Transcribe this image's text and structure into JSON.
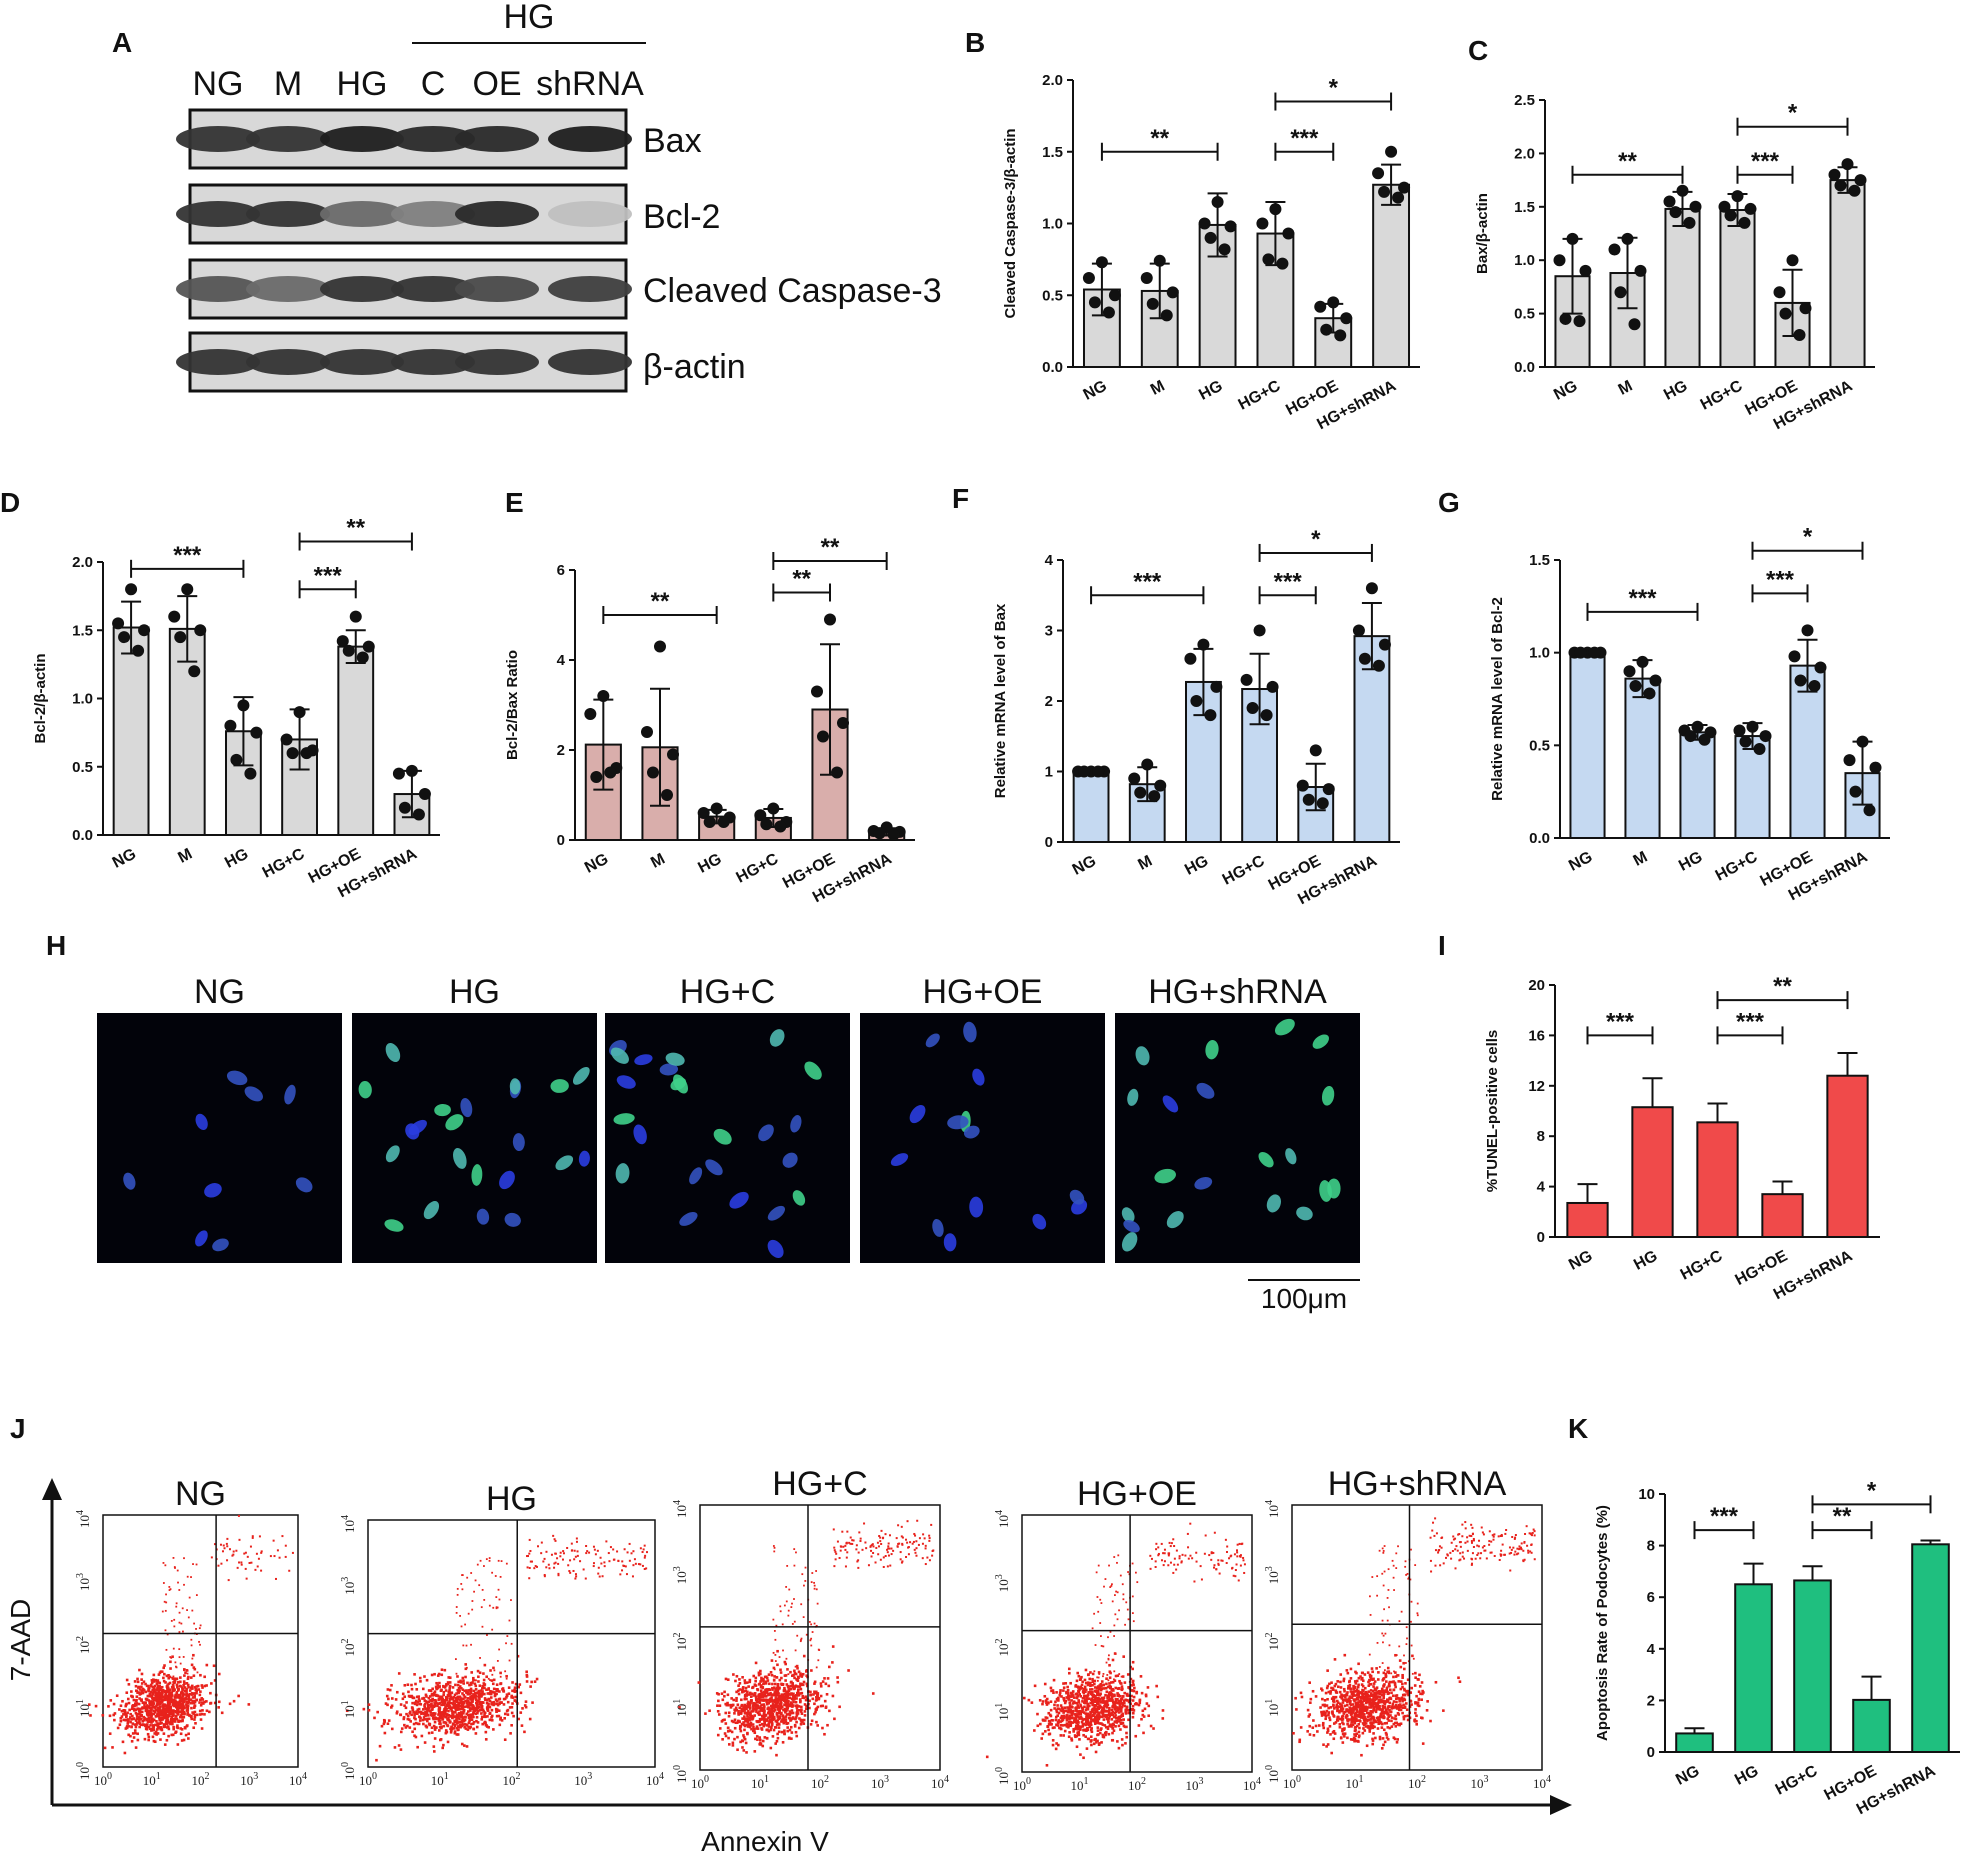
{
  "panel_labels": [
    "A",
    "B",
    "C",
    "D",
    "E",
    "F",
    "G",
    "H",
    "I",
    "J",
    "K"
  ],
  "western_blot": {
    "group_bracket_label": "HG",
    "lanes": [
      "NG",
      "M",
      "HG",
      "C",
      "OE",
      "shRNA"
    ],
    "bands": [
      "Bax",
      "Bcl-2",
      "Cleaved Caspase-3",
      "β-actin"
    ],
    "intensity": [
      [
        0.85,
        0.85,
        0.95,
        0.9,
        0.9,
        0.95
      ],
      [
        0.85,
        0.85,
        0.6,
        0.5,
        0.9,
        0.2
      ],
      [
        0.7,
        0.6,
        0.85,
        0.85,
        0.75,
        0.8
      ],
      [
        0.85,
        0.85,
        0.85,
        0.85,
        0.85,
        0.85
      ]
    ]
  },
  "chart_data": [
    {
      "id": "B",
      "type": "bar",
      "title": "",
      "ylabel": "Cleaved Caspase-3/β-actin",
      "ylim": [
        0,
        2.0
      ],
      "yticks": [
        "0.0",
        "0.5",
        "1.0",
        "1.5",
        "2.0"
      ],
      "categories": [
        "NG",
        "M",
        "HG",
        "HG+C",
        "HG+OE",
        "HG+shRNA"
      ],
      "values": [
        0.54,
        0.53,
        0.99,
        0.93,
        0.34,
        1.27
      ],
      "errors": [
        0.18,
        0.19,
        0.22,
        0.22,
        0.1,
        0.14
      ],
      "points": [
        [
          0.73,
          0.62,
          0.5,
          0.45,
          0.38
        ],
        [
          0.74,
          0.62,
          0.52,
          0.44,
          0.36
        ],
        [
          1.15,
          1.0,
          0.98,
          0.9,
          0.82
        ],
        [
          1.1,
          1.0,
          0.93,
          0.75,
          0.72
        ],
        [
          0.45,
          0.42,
          0.34,
          0.26,
          0.22
        ],
        [
          1.5,
          1.35,
          1.25,
          1.22,
          1.18
        ]
      ],
      "comparisons": [
        {
          "from": 0,
          "to": 2,
          "label": "**",
          "y": 1.5
        },
        {
          "from": 3,
          "to": 4,
          "label": "***",
          "y": 1.5
        },
        {
          "from": 3,
          "to": 5,
          "label": "*",
          "y": 1.85
        }
      ],
      "fill": "#d9d9d9"
    },
    {
      "id": "C",
      "type": "bar",
      "ylabel": "Bax/β-actin",
      "ylim": [
        0,
        2.5
      ],
      "yticks": [
        "0.0",
        "0.5",
        "1.0",
        "1.5",
        "2.0",
        "2.5"
      ],
      "categories": [
        "NG",
        "M",
        "HG",
        "HG+C",
        "HG+OE",
        "HG+shRNA"
      ],
      "values": [
        0.85,
        0.88,
        1.48,
        1.47,
        0.6,
        1.75
      ],
      "errors": [
        0.35,
        0.33,
        0.16,
        0.15,
        0.31,
        0.12
      ],
      "points": [
        [
          1.2,
          1.0,
          0.9,
          0.45,
          0.43
        ],
        [
          1.2,
          1.1,
          0.9,
          0.7,
          0.4
        ],
        [
          1.65,
          1.55,
          1.5,
          1.45,
          1.35
        ],
        [
          1.6,
          1.5,
          1.48,
          1.42,
          1.35
        ],
        [
          1.0,
          0.7,
          0.55,
          0.5,
          0.3
        ],
        [
          1.9,
          1.8,
          1.75,
          1.7,
          1.65
        ]
      ],
      "comparisons": [
        {
          "from": 0,
          "to": 2,
          "label": "**",
          "y": 1.8
        },
        {
          "from": 3,
          "to": 4,
          "label": "***",
          "y": 1.8
        },
        {
          "from": 3,
          "to": 5,
          "label": "*",
          "y": 2.25
        }
      ],
      "fill": "#d9d9d9"
    },
    {
      "id": "D",
      "type": "bar",
      "ylabel": "Bcl-2/β-actin",
      "ylim": [
        0,
        2.0
      ],
      "yticks": [
        "0.0",
        "0.5",
        "1.0",
        "1.5",
        "2.0"
      ],
      "categories": [
        "NG",
        "M",
        "HG",
        "HG+C",
        "HG+OE",
        "HG+shRNA"
      ],
      "values": [
        1.52,
        1.51,
        0.76,
        0.7,
        1.38,
        0.3
      ],
      "errors": [
        0.19,
        0.24,
        0.25,
        0.22,
        0.12,
        0.17
      ],
      "points": [
        [
          1.8,
          1.55,
          1.5,
          1.45,
          1.35
        ],
        [
          1.8,
          1.6,
          1.5,
          1.45,
          1.2
        ],
        [
          0.95,
          0.8,
          0.75,
          0.55,
          0.45
        ],
        [
          0.9,
          0.7,
          0.62,
          0.6,
          0.6
        ],
        [
          1.6,
          1.42,
          1.38,
          1.35,
          1.3
        ],
        [
          0.47,
          0.45,
          0.3,
          0.2,
          0.15
        ]
      ],
      "comparisons": [
        {
          "from": 0,
          "to": 2,
          "label": "***",
          "y": 1.95
        },
        {
          "from": 3,
          "to": 4,
          "label": "***",
          "y": 1.8
        },
        {
          "from": 3,
          "to": 5,
          "label": "**",
          "y": 2.15
        }
      ],
      "fill": "#d9d9d9"
    },
    {
      "id": "E",
      "type": "bar",
      "ylabel": "Bcl-2/Bax Ratio",
      "ylim": [
        0,
        6
      ],
      "yticks": [
        "0",
        "2",
        "4",
        "6"
      ],
      "categories": [
        "NG",
        "M",
        "HG",
        "HG+C",
        "HG+OE",
        "HG+shRNA"
      ],
      "values": [
        2.12,
        2.06,
        0.52,
        0.49,
        2.9,
        0.18
      ],
      "errors": [
        1.0,
        1.3,
        0.15,
        0.2,
        1.45,
        0.08
      ],
      "points": [
        [
          3.2,
          2.8,
          1.6,
          1.4,
          1.5
        ],
        [
          4.3,
          2.4,
          1.9,
          1.5,
          1.0
        ],
        [
          0.7,
          0.6,
          0.5,
          0.4,
          0.4
        ],
        [
          0.7,
          0.55,
          0.4,
          0.35,
          0.3
        ],
        [
          4.9,
          3.3,
          2.6,
          2.3,
          1.5
        ],
        [
          0.28,
          0.2,
          0.18,
          0.15,
          0.12
        ]
      ],
      "comparisons": [
        {
          "from": 0,
          "to": 2,
          "label": "**",
          "y": 5.0
        },
        {
          "from": 3,
          "to": 4,
          "label": "**",
          "y": 5.5
        },
        {
          "from": 3,
          "to": 5,
          "label": "**",
          "y": 6.2
        }
      ],
      "fill": "#d9aeab"
    },
    {
      "id": "F",
      "type": "bar",
      "ylabel": "Relative mRNA level of Bax",
      "ylim": [
        0,
        4
      ],
      "yticks": [
        "0",
        "1",
        "2",
        "3",
        "4"
      ],
      "categories": [
        "NG",
        "M",
        "HG",
        "HG+C",
        "HG+OE",
        "HG+shRNA"
      ],
      "values": [
        1.0,
        0.82,
        2.27,
        2.17,
        0.78,
        2.92
      ],
      "errors": [
        0.0,
        0.24,
        0.47,
        0.5,
        0.33,
        0.47
      ],
      "points": [
        [
          1,
          1,
          1,
          1,
          1
        ],
        [
          1.1,
          0.9,
          0.8,
          0.7,
          0.65
        ],
        [
          2.8,
          2.6,
          2.2,
          2.0,
          1.8
        ],
        [
          3.0,
          2.3,
          2.2,
          1.9,
          1.8
        ],
        [
          1.3,
          0.8,
          0.75,
          0.6,
          0.55
        ],
        [
          3.6,
          3.0,
          2.8,
          2.6,
          2.5
        ]
      ],
      "comparisons": [
        {
          "from": 0,
          "to": 2,
          "label": "***",
          "y": 3.5
        },
        {
          "from": 3,
          "to": 4,
          "label": "***",
          "y": 3.5
        },
        {
          "from": 3,
          "to": 5,
          "label": "*",
          "y": 4.1
        }
      ],
      "fill": "#c5d9f1"
    },
    {
      "id": "G",
      "type": "bar",
      "ylabel": "Relative mRNA level of Bcl-2",
      "ylim": [
        0,
        1.5
      ],
      "yticks": [
        "0.0",
        "0.5",
        "1.0",
        "1.5"
      ],
      "categories": [
        "NG",
        "M",
        "HG",
        "HG+C",
        "HG+OE",
        "HG+shRNA"
      ],
      "values": [
        1.0,
        0.86,
        0.57,
        0.55,
        0.93,
        0.35
      ],
      "errors": [
        0.0,
        0.1,
        0.04,
        0.07,
        0.14,
        0.17
      ],
      "points": [
        [
          1,
          1,
          1,
          1,
          1
        ],
        [
          0.95,
          0.9,
          0.85,
          0.82,
          0.78
        ],
        [
          0.6,
          0.58,
          0.57,
          0.55,
          0.53
        ],
        [
          0.6,
          0.58,
          0.55,
          0.52,
          0.48
        ],
        [
          1.12,
          0.98,
          0.92,
          0.85,
          0.82
        ],
        [
          0.52,
          0.42,
          0.38,
          0.25,
          0.15
        ]
      ],
      "comparisons": [
        {
          "from": 0,
          "to": 2,
          "label": "***",
          "y": 1.22
        },
        {
          "from": 3,
          "to": 4,
          "label": "***",
          "y": 1.32
        },
        {
          "from": 3,
          "to": 5,
          "label": "*",
          "y": 1.55
        }
      ],
      "fill": "#c5d9f1"
    },
    {
      "id": "I",
      "type": "bar",
      "ylabel": "%TUNEL-positive cells",
      "ylim": [
        0,
        20
      ],
      "yticks": [
        "0",
        "4",
        "8",
        "12",
        "16",
        "20"
      ],
      "categories": [
        "NG",
        "HG",
        "HG+C",
        "HG+OE",
        "HG+shRNA"
      ],
      "values": [
        2.7,
        10.3,
        9.1,
        3.4,
        12.8
      ],
      "errors": [
        1.5,
        2.3,
        1.5,
        1.0,
        1.8
      ],
      "points": [],
      "comparisons": [
        {
          "from": 0,
          "to": 1,
          "label": "***",
          "y": 16
        },
        {
          "from": 2,
          "to": 3,
          "label": "***",
          "y": 16
        },
        {
          "from": 2,
          "to": 4,
          "label": "**",
          "y": 18.8
        }
      ],
      "fill": "#f04a4a"
    },
    {
      "id": "K",
      "type": "bar",
      "ylabel": "Apoptosis Rate of Podocytes (%)",
      "ylim": [
        0,
        10
      ],
      "yticks": [
        "0",
        "2",
        "4",
        "6",
        "8",
        "10"
      ],
      "categories": [
        "NG",
        "HG",
        "HG+C",
        "HG+OE",
        "HG+shRNA"
      ],
      "values": [
        0.72,
        6.5,
        6.65,
        2.02,
        8.05
      ],
      "errors": [
        0.2,
        0.8,
        0.55,
        0.9,
        0.15
      ],
      "points": [],
      "comparisons": [
        {
          "from": 0,
          "to": 1,
          "label": "***",
          "y": 8.6
        },
        {
          "from": 2,
          "to": 3,
          "label": "**",
          "y": 8.6
        },
        {
          "from": 2,
          "to": 4,
          "label": "*",
          "y": 9.6
        }
      ],
      "fill": "#1fbf7f"
    }
  ],
  "tunel_images": {
    "groups": [
      "NG",
      "HG",
      "HG+C",
      "HG+OE",
      "HG+shRNA"
    ],
    "scale_bar": "100μm"
  },
  "flow_cytometry": {
    "groups": [
      "NG",
      "HG",
      "HG+C",
      "HG+OE",
      "HG+shRNA"
    ],
    "y_axis": "7-AAD",
    "x_axis": "Annexin V",
    "decade_ticks": [
      "10",
      "10",
      "10",
      "10",
      "10"
    ],
    "decade_exponents": [
      "0",
      "1",
      "2",
      "3",
      "4"
    ]
  }
}
